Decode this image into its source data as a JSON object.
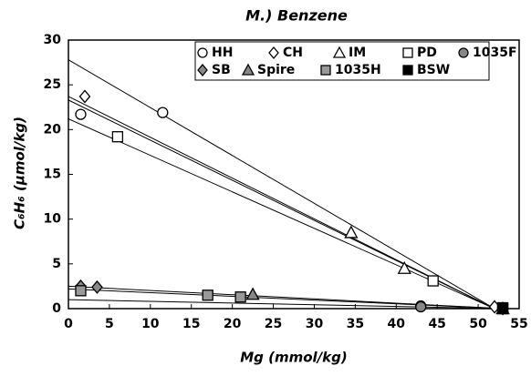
{
  "chart_data": {
    "type": "scatter",
    "title": "M.) Benzene",
    "xlabel": "Mg (mmol/kg)",
    "ylabel": "C₆H₆ (μmol/kg)",
    "xlim": [
      0,
      55
    ],
    "ylim": [
      0,
      30
    ],
    "xticks": [
      0,
      5,
      10,
      15,
      20,
      25,
      30,
      35,
      40,
      45,
      50,
      55
    ],
    "yticks": [
      0,
      5,
      10,
      15,
      20,
      25,
      30
    ],
    "series": [
      {
        "name": "HH",
        "marker": "circle",
        "color": "#ffffff",
        "x": [
          1.5,
          11.5,
          43,
          53
        ],
        "values": [
          21.7,
          21.9,
          0.3,
          0
        ]
      },
      {
        "name": "CH",
        "marker": "diamond",
        "color": "#ffffff",
        "x": [
          2,
          52
        ],
        "values": [
          23.7,
          0.2
        ]
      },
      {
        "name": "IM",
        "marker": "triangle",
        "color": "#ffffff",
        "x": [
          34.5,
          41,
          53
        ],
        "values": [
          8.5,
          4.5,
          0
        ]
      },
      {
        "name": "PD",
        "marker": "square",
        "color": "#ffffff",
        "x": [
          6,
          44.5,
          53
        ],
        "values": [
          19.2,
          3.1,
          0
        ]
      },
      {
        "name": "1035F",
        "marker": "circle",
        "color": "#888888",
        "x": [
          43,
          53
        ],
        "values": [
          0.2,
          0
        ]
      },
      {
        "name": "SB",
        "marker": "diamond",
        "color": "#888888",
        "x": [
          1.5,
          3.5,
          53
        ],
        "values": [
          2.5,
          2.4,
          0
        ]
      },
      {
        "name": "Spire",
        "marker": "triangle",
        "color": "#888888",
        "x": [
          22.5,
          53
        ],
        "values": [
          1.6,
          0
        ]
      },
      {
        "name": "1035H",
        "marker": "square",
        "color": "#999999",
        "x": [
          1.5,
          17,
          21,
          53
        ],
        "values": [
          2,
          1.5,
          1.3,
          0
        ]
      },
      {
        "name": "BSW",
        "marker": "square",
        "color": "#000000",
        "x": [
          53
        ],
        "values": [
          0.1
        ]
      }
    ],
    "fit_lines": [
      {
        "x": [
          0,
          52
        ],
        "values": [
          27.8,
          0
        ]
      },
      {
        "x": [
          0,
          52
        ],
        "values": [
          23.7,
          0
        ]
      },
      {
        "x": [
          0,
          52
        ],
        "values": [
          23.3,
          0
        ]
      },
      {
        "x": [
          0,
          52
        ],
        "values": [
          21.2,
          0
        ]
      },
      {
        "x": [
          0,
          53
        ],
        "values": [
          2.5,
          0
        ]
      },
      {
        "x": [
          0,
          53
        ],
        "values": [
          2.2,
          0
        ]
      },
      {
        "x": [
          0,
          53
        ],
        "values": [
          1,
          0
        ]
      }
    ]
  }
}
